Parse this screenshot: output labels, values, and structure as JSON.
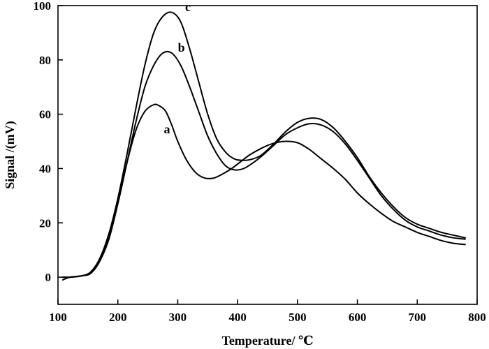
{
  "chart_data": {
    "type": "line",
    "title": "",
    "xlabel": "Temperature/ ℃",
    "ylabel": "Signal /(mV)",
    "xlim": [
      100,
      800
    ],
    "ylim": [
      -10,
      100
    ],
    "xticks": [
      100,
      200,
      300,
      400,
      500,
      600,
      700,
      800
    ],
    "yticks": [
      0,
      20,
      40,
      60,
      80,
      100
    ],
    "grid": false,
    "legend": "none",
    "line_color": "#000000",
    "series": [
      {
        "name": "a",
        "x": [
          108,
          120,
          140,
          155,
          170,
          185,
          200,
          215,
          230,
          245,
          260,
          270,
          280,
          290,
          300,
          315,
          330,
          345,
          360,
          375,
          390,
          405,
          420,
          440,
          460,
          480,
          500,
          520,
          540,
          560,
          580,
          600,
          620,
          640,
          660,
          680,
          700,
          720,
          740,
          760,
          780
        ],
        "y": [
          -1,
          0,
          0.5,
          1.5,
          6,
          15,
          28,
          42,
          54,
          61,
          63.5,
          63,
          61,
          56,
          50,
          43,
          38.5,
          36.5,
          36.5,
          38,
          40,
          42.5,
          45,
          47.5,
          49.3,
          50,
          49.5,
          47,
          43.5,
          40,
          36,
          31,
          27,
          23.5,
          20.5,
          18.5,
          16.5,
          15,
          13.5,
          12.5,
          12
        ]
      },
      {
        "name": "b",
        "x": [
          108,
          120,
          140,
          155,
          170,
          185,
          200,
          215,
          230,
          245,
          260,
          275,
          290,
          305,
          320,
          335,
          350,
          365,
          380,
          395,
          410,
          425,
          440,
          460,
          480,
          500,
          520,
          540,
          560,
          580,
          600,
          620,
          640,
          660,
          680,
          700,
          720,
          740,
          760,
          780
        ],
        "y": [
          0,
          0,
          0.5,
          1.5,
          6,
          14,
          27,
          42,
          57,
          70,
          78,
          82.5,
          82.5,
          78,
          70,
          61,
          52,
          45.5,
          41,
          39.5,
          40,
          42,
          44.5,
          48.5,
          52.5,
          55,
          56.5,
          56,
          53.5,
          49,
          43,
          36.5,
          30,
          25,
          21,
          18.5,
          17,
          15.5,
          14.5,
          14
        ]
      },
      {
        "name": "c",
        "x": [
          108,
          120,
          140,
          155,
          170,
          185,
          200,
          215,
          230,
          245,
          260,
          275,
          290,
          305,
          320,
          335,
          350,
          365,
          380,
          395,
          410,
          425,
          440,
          460,
          480,
          500,
          520,
          540,
          560,
          580,
          600,
          620,
          640,
          660,
          680,
          700,
          720,
          740,
          760,
          780
        ],
        "y": [
          0,
          0,
          0.5,
          2,
          7,
          16,
          29,
          45,
          62,
          78,
          90,
          96,
          97.5,
          94,
          84,
          72,
          60,
          51,
          46,
          43.5,
          43,
          43.5,
          45,
          49,
          53.5,
          57,
          58.5,
          58,
          55,
          50,
          44,
          37,
          31,
          26,
          22,
          19.5,
          18,
          16.5,
          15.5,
          14.5
        ]
      }
    ],
    "series_labels": [
      {
        "text": "a",
        "x": 282,
        "y": 53
      },
      {
        "text": "b",
        "x": 306,
        "y": 83
      },
      {
        "text": "c",
        "x": 317,
        "y": 98
      }
    ]
  }
}
